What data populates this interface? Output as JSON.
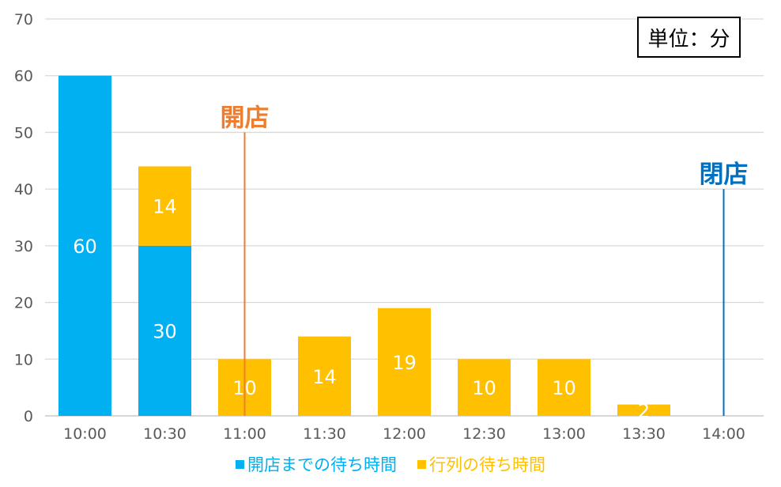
{
  "chart_data": {
    "type": "bar",
    "stacked": true,
    "categories": [
      "10:00",
      "10:30",
      "11:00",
      "11:30",
      "12:00",
      "12:30",
      "13:00",
      "13:30",
      "14:00"
    ],
    "series": [
      {
        "name": "開店までの待ち時間",
        "color": "#00b0f0",
        "values": [
          60,
          30,
          0,
          0,
          0,
          0,
          0,
          0,
          0
        ]
      },
      {
        "name": "行列の待ち時間",
        "color": "#ffc000",
        "values": [
          0,
          14,
          10,
          14,
          19,
          10,
          10,
          2,
          0
        ]
      }
    ],
    "ylim": [
      0,
      70
    ],
    "yticks": [
      "0",
      "10",
      "20",
      "30",
      "40",
      "50",
      "60",
      "70"
    ],
    "grid": true,
    "legend_position": "bottom",
    "unit_label": "単位：分",
    "annotations": [
      {
        "text": "開店",
        "category": "11:00",
        "value": 50,
        "color": "#ed7d31"
      },
      {
        "text": "閉店",
        "category": "14:00",
        "value": 40,
        "color": "#0070c0"
      }
    ]
  }
}
